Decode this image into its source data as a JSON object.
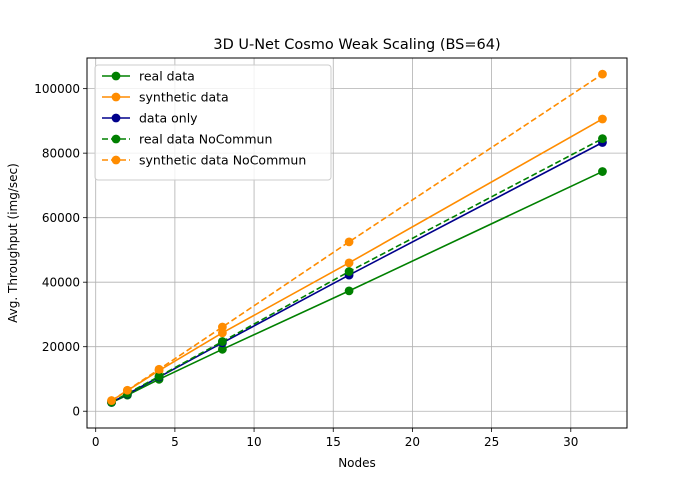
{
  "chart_data": {
    "type": "line",
    "title": "3D U-Net Cosmo Weak Scaling (BS=64)",
    "xlabel": "Nodes",
    "ylabel": "Avg. Throughput (img/sec)",
    "xlim": [
      -0.55,
      33.55
    ],
    "ylim": [
      -5200,
      109500
    ],
    "x_ticks": [
      0,
      5,
      10,
      15,
      20,
      25,
      30
    ],
    "y_ticks": [
      0,
      20000,
      40000,
      60000,
      80000,
      100000
    ],
    "grid": true,
    "legend_position": "top-left",
    "x": [
      1,
      2,
      4,
      8,
      16,
      32
    ],
    "series": [
      {
        "name": "real data",
        "color": "#008000",
        "dashed": false,
        "values": [
          2700,
          5000,
          9900,
          19200,
          37300,
          74300
        ]
      },
      {
        "name": "synthetic data",
        "color": "#ff8c00",
        "dashed": false,
        "values": [
          3250,
          6400,
          12600,
          24300,
          46000,
          90600
        ]
      },
      {
        "name": "data only",
        "color": "#00008b",
        "dashed": false,
        "values": [
          2750,
          5300,
          10600,
          21200,
          42200,
          83300
        ]
      },
      {
        "name": "real data NoCommun",
        "color": "#008000",
        "dashed": true,
        "values": [
          2800,
          5500,
          10800,
          21600,
          43300,
          84500
        ]
      },
      {
        "name": "synthetic data NoCommun",
        "color": "#ff8c00",
        "dashed": true,
        "values": [
          3300,
          6500,
          13000,
          26100,
          52500,
          104500
        ]
      }
    ]
  }
}
